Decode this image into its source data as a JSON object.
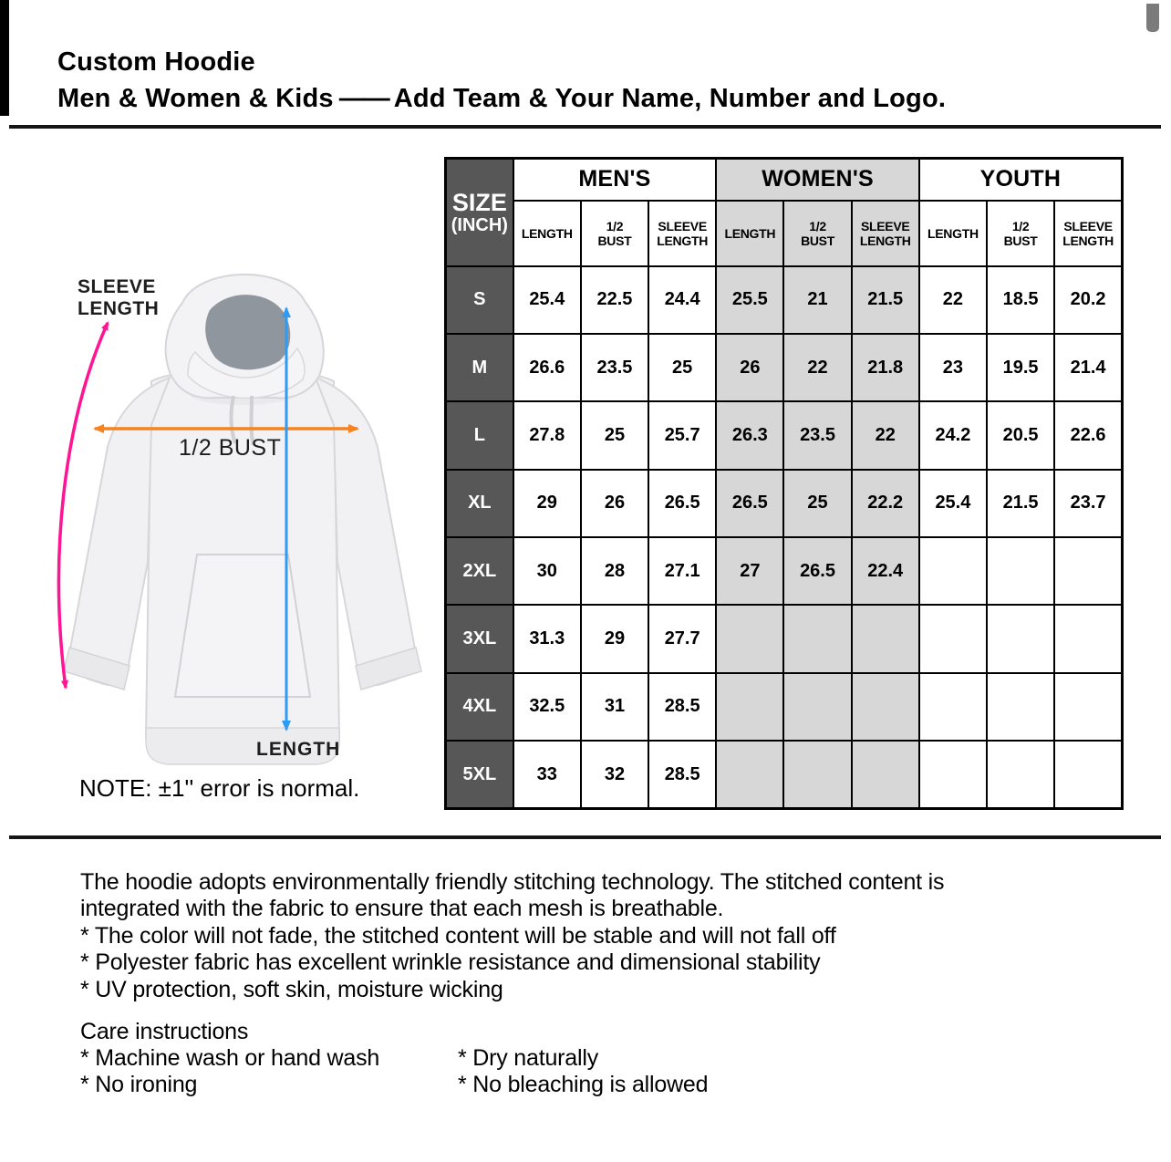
{
  "header": {
    "title": "Custom Hoodie",
    "subtitle_pre": "Men & Women & Kids",
    "subtitle_dash": "——",
    "subtitle_post": "Add Team & Your Name, Number and Logo."
  },
  "diagram": {
    "sleeve_label_line1": "SLEEVE",
    "sleeve_label_line2": "LENGTH",
    "bust_label": "1/2 BUST",
    "length_label": "LENGTH",
    "note": "NOTE: ±1'' error is normal.",
    "colors": {
      "sleeve_arrow": "#ff1493",
      "bust_arrow": "#f5831f",
      "length_arrow": "#2f9bf2"
    }
  },
  "size_table": {
    "corner": {
      "line1": "SIZE",
      "line2": "(INCH)"
    },
    "groups": [
      "MEN'S",
      "WOMEN'S",
      "YOUTH"
    ],
    "sub_headers": [
      {
        "lines": [
          "LENGTH"
        ]
      },
      {
        "lines": [
          "1/2",
          "BUST"
        ]
      },
      {
        "lines": [
          "SLEEVE",
          "LENGTH"
        ]
      }
    ],
    "rows": [
      {
        "size": "S",
        "values": [
          "25.4",
          "22.5",
          "24.4",
          "25.5",
          "21",
          "21.5",
          "22",
          "18.5",
          "20.2"
        ]
      },
      {
        "size": "M",
        "values": [
          "26.6",
          "23.5",
          "25",
          "26",
          "22",
          "21.8",
          "23",
          "19.5",
          "21.4"
        ]
      },
      {
        "size": "L",
        "values": [
          "27.8",
          "25",
          "25.7",
          "26.3",
          "23.5",
          "22",
          "24.2",
          "20.5",
          "22.6"
        ]
      },
      {
        "size": "XL",
        "values": [
          "29",
          "26",
          "26.5",
          "26.5",
          "25",
          "22.2",
          "25.4",
          "21.5",
          "23.7"
        ]
      },
      {
        "size": "2XL",
        "values": [
          "30",
          "28",
          "27.1",
          "27",
          "26.5",
          "22.4",
          "",
          "",
          ""
        ]
      },
      {
        "size": "3XL",
        "values": [
          "31.3",
          "29",
          "27.7",
          "",
          "",
          "",
          "",
          "",
          ""
        ]
      },
      {
        "size": "4XL",
        "values": [
          "32.5",
          "31",
          "28.5",
          "",
          "",
          "",
          "",
          "",
          ""
        ]
      },
      {
        "size": "5XL",
        "values": [
          "33",
          "32",
          "28.5",
          "",
          "",
          "",
          "",
          "",
          ""
        ]
      }
    ],
    "colors": {
      "header_dark": "#575757",
      "women_bg": "#d7d7d7"
    }
  },
  "description": {
    "lines": [
      "The hoodie adopts environmentally friendly stitching technology. The stitched content is",
      "integrated with the fabric to ensure that each mesh is breathable.",
      "* The color will not fade, the stitched content will be stable and will not fall off",
      "* Polyester fabric has excellent wrinkle resistance and dimensional stability",
      "* UV protection, soft skin, moisture wicking"
    ]
  },
  "care": {
    "heading": "Care instructions",
    "left": [
      "* Machine wash or hand wash",
      "* No ironing"
    ],
    "right": [
      "* Dry naturally",
      "* No bleaching is allowed"
    ]
  }
}
